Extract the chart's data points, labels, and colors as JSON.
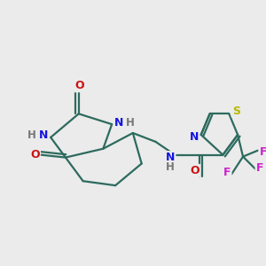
{
  "background_color": "#ebebeb",
  "bond_color": "#2d6b5e",
  "bond_width": 1.6,
  "label_colors": {
    "N": "#1515e0",
    "O": "#cc1111",
    "F": "#cc22cc",
    "S": "#b8b800",
    "H": "#777777",
    "C": "#2d6b5e"
  },
  "figsize": [
    3.0,
    3.0
  ],
  "dpi": 100
}
